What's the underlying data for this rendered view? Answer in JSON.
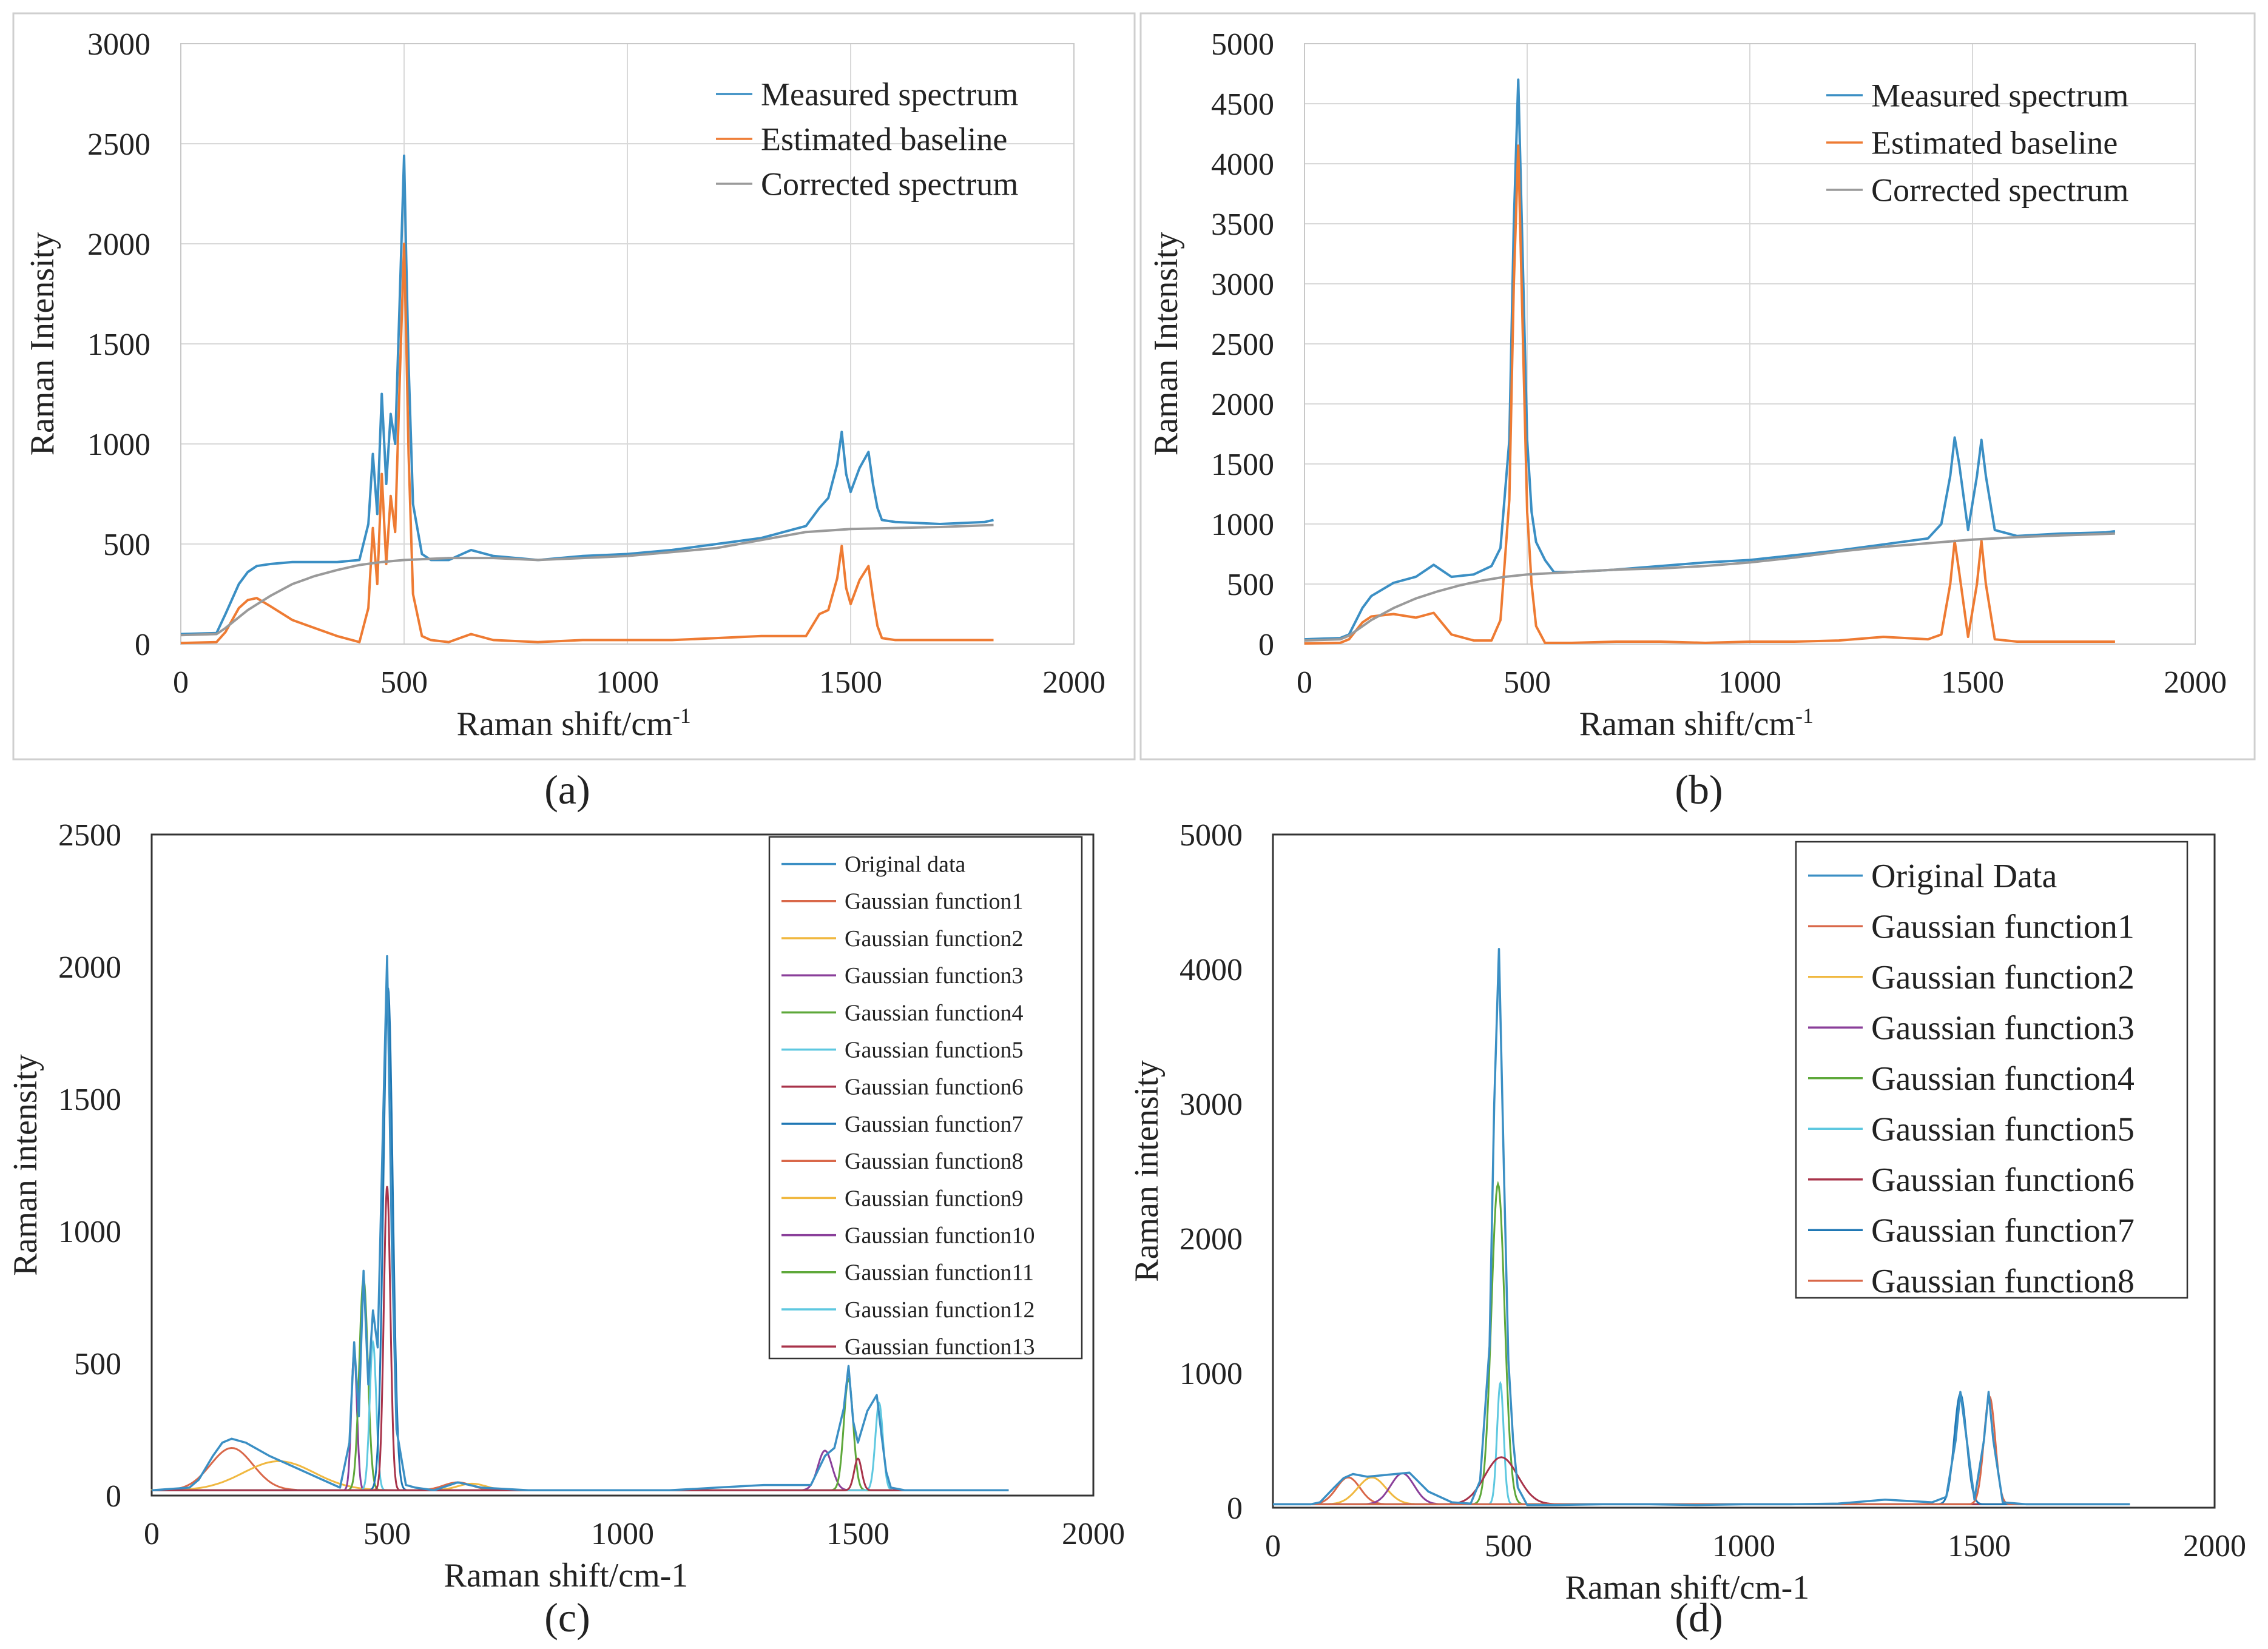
{
  "colors": {
    "measured": "#3b8fc4",
    "baseline": "#ee7b33",
    "corrected": "#9a9a9a",
    "grid": "#d9d9d9",
    "frame": "#c8c8c8",
    "gauss": [
      "#d9684a",
      "#f0b840",
      "#8a3f9a",
      "#5ea83a",
      "#5ec8e0",
      "#a8334a",
      "#1f77b4",
      "#d9684a",
      "#f0b840",
      "#8a3f9a",
      "#5ea83a",
      "#5ec8e0",
      "#a8334a"
    ]
  },
  "panels": {
    "a": {
      "caption": "(a)"
    },
    "b": {
      "caption": "(b)"
    },
    "c": {
      "caption": "(c)"
    },
    "d": {
      "caption": "(d)"
    }
  },
  "chart_data": [
    {
      "id": "a",
      "type": "line",
      "xlabel": "Raman shift/cm",
      "xlabel_sup": "-1",
      "ylabel": "Raman Intensity",
      "xlim": [
        0,
        2000
      ],
      "ylim": [
        0,
        3000
      ],
      "xticks": [
        "0",
        "500",
        "1000",
        "1500",
        "2000"
      ],
      "yticks": [
        "0",
        "500",
        "1000",
        "1500",
        "2000",
        "2500",
        "3000"
      ],
      "grid": true,
      "legend_position": "top-right",
      "legend": [
        "Measured spectrum",
        "Estimated baseline",
        "Corrected spectrum"
      ],
      "series": [
        {
          "name": "Measured spectrum",
          "x": [
            0,
            80,
            100,
            130,
            150,
            170,
            200,
            250,
            300,
            350,
            400,
            420,
            430,
            440,
            450,
            460,
            470,
            480,
            490,
            500,
            505,
            510,
            520,
            540,
            560,
            600,
            650,
            700,
            800,
            900,
            1000,
            1100,
            1200,
            1300,
            1350,
            1400,
            1430,
            1450,
            1470,
            1480,
            1490,
            1500,
            1520,
            1540,
            1550,
            1560,
            1570,
            1600,
            1700,
            1800,
            1820
          ],
          "y": [
            50,
            55,
            150,
            300,
            360,
            390,
            400,
            410,
            410,
            410,
            420,
            600,
            950,
            650,
            1250,
            800,
            1150,
            1000,
            1700,
            2440,
            1900,
            1400,
            700,
            450,
            420,
            420,
            470,
            440,
            420,
            440,
            450,
            470,
            500,
            530,
            560,
            590,
            680,
            730,
            900,
            1060,
            850,
            760,
            880,
            960,
            800,
            680,
            620,
            610,
            600,
            610,
            620
          ]
        },
        {
          "name": "Estimated baseline",
          "x": [
            0,
            80,
            100,
            130,
            150,
            170,
            200,
            250,
            300,
            350,
            400,
            420,
            430,
            440,
            450,
            460,
            470,
            480,
            490,
            500,
            505,
            510,
            520,
            540,
            560,
            600,
            650,
            700,
            800,
            900,
            1000,
            1100,
            1200,
            1300,
            1350,
            1400,
            1430,
            1450,
            1470,
            1480,
            1490,
            1500,
            1520,
            1540,
            1550,
            1560,
            1570,
            1600,
            1700,
            1800,
            1820
          ],
          "y": [
            5,
            10,
            60,
            180,
            220,
            230,
            190,
            120,
            80,
            40,
            10,
            180,
            580,
            300,
            850,
            400,
            740,
            560,
            1300,
            2000,
            1500,
            950,
            250,
            40,
            20,
            10,
            50,
            20,
            10,
            20,
            20,
            20,
            30,
            40,
            40,
            40,
            150,
            170,
            330,
            490,
            280,
            200,
            320,
            390,
            230,
            90,
            30,
            20,
            20,
            20,
            20
          ]
        },
        {
          "name": "Corrected spectrum",
          "x": [
            0,
            80,
            100,
            150,
            200,
            250,
            300,
            350,
            400,
            450,
            500,
            600,
            700,
            800,
            900,
            1000,
            1100,
            1200,
            1300,
            1400,
            1500,
            1600,
            1700,
            1820
          ],
          "y": [
            45,
            50,
            80,
            170,
            240,
            300,
            340,
            370,
            395,
            410,
            420,
            430,
            430,
            420,
            430,
            440,
            460,
            480,
            520,
            560,
            575,
            580,
            585,
            595
          ]
        }
      ]
    },
    {
      "id": "b",
      "type": "line",
      "xlabel": "Raman shift/cm",
      "xlabel_sup": "-1",
      "ylabel": "Raman Intensity",
      "xlim": [
        0,
        2000
      ],
      "ylim": [
        0,
        5000
      ],
      "xticks": [
        "0",
        "500",
        "1000",
        "1500",
        "2000"
      ],
      "yticks": [
        "0",
        "500",
        "1000",
        "1500",
        "2000",
        "2500",
        "3000",
        "3500",
        "4000",
        "4500",
        "5000"
      ],
      "grid": true,
      "legend_position": "top-right",
      "legend": [
        "Measured spectrum",
        "Estimated baseline",
        "Corrected spectrum"
      ],
      "series": [
        {
          "name": "Measured spectrum",
          "x": [
            0,
            80,
            100,
            130,
            150,
            200,
            250,
            290,
            330,
            380,
            420,
            440,
            460,
            470,
            480,
            490,
            500,
            510,
            520,
            540,
            560,
            600,
            700,
            800,
            900,
            1000,
            1100,
            1200,
            1300,
            1400,
            1430,
            1450,
            1460,
            1470,
            1490,
            1510,
            1520,
            1530,
            1550,
            1600,
            1700,
            1800,
            1820
          ],
          "y": [
            40,
            50,
            80,
            300,
            400,
            510,
            560,
            660,
            560,
            580,
            650,
            800,
            1700,
            3500,
            4700,
            3200,
            1700,
            1100,
            850,
            700,
            600,
            600,
            620,
            650,
            680,
            700,
            740,
            780,
            830,
            880,
            1000,
            1400,
            1720,
            1500,
            950,
            1400,
            1700,
            1400,
            950,
            900,
            920,
            930,
            940
          ]
        },
        {
          "name": "Estimated baseline",
          "x": [
            0,
            80,
            100,
            130,
            150,
            200,
            250,
            290,
            330,
            380,
            420,
            440,
            460,
            470,
            480,
            490,
            500,
            510,
            520,
            540,
            560,
            600,
            700,
            800,
            900,
            1000,
            1100,
            1200,
            1300,
            1400,
            1430,
            1450,
            1460,
            1470,
            1490,
            1510,
            1520,
            1530,
            1550,
            1600,
            1700,
            1800,
            1820
          ],
          "y": [
            5,
            10,
            40,
            180,
            230,
            250,
            220,
            260,
            80,
            30,
            30,
            200,
            1200,
            3000,
            4150,
            2600,
            1100,
            500,
            150,
            10,
            10,
            10,
            20,
            20,
            10,
            20,
            20,
            30,
            60,
            40,
            80,
            500,
            860,
            600,
            60,
            500,
            860,
            500,
            40,
            20,
            20,
            20,
            20
          ]
        },
        {
          "name": "Corrected spectrum",
          "x": [
            0,
            80,
            100,
            150,
            200,
            250,
            300,
            350,
            400,
            450,
            500,
            600,
            700,
            800,
            900,
            1000,
            1100,
            1200,
            1300,
            1400,
            1500,
            1600,
            1700,
            1820
          ],
          "y": [
            30,
            40,
            70,
            200,
            300,
            380,
            440,
            490,
            530,
            560,
            580,
            600,
            620,
            630,
            650,
            680,
            720,
            770,
            810,
            840,
            870,
            890,
            905,
            920
          ]
        }
      ]
    },
    {
      "id": "c",
      "type": "line",
      "xlabel": "Raman shift/cm-1",
      "ylabel": "Raman intensity",
      "xlim": [
        0,
        2000
      ],
      "ylim": [
        0,
        2500
      ],
      "xticks": [
        "0",
        "500",
        "1000",
        "1500",
        "2000"
      ],
      "yticks": [
        "0",
        "500",
        "1000",
        "1500",
        "2000",
        "2500"
      ],
      "grid": false,
      "legend_position": "top-right",
      "legend": [
        "Original data",
        "Gaussian function1",
        "Gaussian function2",
        "Gaussian function3",
        "Gaussian function4",
        "Gaussian function5",
        "Gaussian function6",
        "Gaussian function7",
        "Gaussian function8",
        "Gaussian function9",
        "Gaussian function10",
        "Gaussian function11",
        "Gaussian function12",
        "Gaussian function13"
      ],
      "base": 20,
      "original": {
        "name": "Original data",
        "x": [
          0,
          80,
          100,
          130,
          150,
          170,
          200,
          250,
          300,
          350,
          400,
          420,
          430,
          440,
          450,
          460,
          470,
          480,
          490,
          500,
          505,
          510,
          520,
          540,
          560,
          600,
          650,
          700,
          800,
          900,
          1000,
          1100,
          1200,
          1300,
          1400,
          1430,
          1450,
          1470,
          1480,
          1490,
          1500,
          1520,
          1540,
          1550,
          1560,
          1570,
          1600,
          1700,
          1820
        ],
        "y": [
          20,
          30,
          60,
          150,
          200,
          215,
          200,
          150,
          110,
          70,
          30,
          200,
          580,
          300,
          850,
          420,
          700,
          560,
          1300,
          2040,
          1500,
          950,
          250,
          40,
          30,
          20,
          50,
          30,
          20,
          20,
          20,
          20,
          30,
          40,
          40,
          150,
          180,
          330,
          490,
          280,
          200,
          320,
          380,
          230,
          90,
          30,
          20,
          20,
          20
        ]
      },
      "gaussians": [
        {
          "name": "Gaussian function1",
          "amp": 160,
          "center": 170,
          "width": 45
        },
        {
          "name": "Gaussian function2",
          "amp": 110,
          "center": 270,
          "width": 75
        },
        {
          "name": "Gaussian function3",
          "amp": 520,
          "center": 430,
          "width": 6
        },
        {
          "name": "Gaussian function4",
          "amp": 800,
          "center": 450,
          "width": 9
        },
        {
          "name": "Gaussian function5",
          "amp": 560,
          "center": 470,
          "width": 7
        },
        {
          "name": "Gaussian function6",
          "amp": 1150,
          "center": 500,
          "width": 7
        },
        {
          "name": "Gaussian function7",
          "amp": 1900,
          "center": 502,
          "width": 10
        },
        {
          "name": "Gaussian function8",
          "amp": 30,
          "center": 650,
          "width": 30
        },
        {
          "name": "Gaussian function9",
          "amp": 25,
          "center": 680,
          "width": 30
        },
        {
          "name": "Gaussian function10",
          "amp": 150,
          "center": 1430,
          "width": 15
        },
        {
          "name": "Gaussian function11",
          "amp": 420,
          "center": 1480,
          "width": 10
        },
        {
          "name": "Gaussian function12",
          "amp": 330,
          "center": 1545,
          "width": 8
        },
        {
          "name": "Gaussian function13",
          "amp": 120,
          "center": 1500,
          "width": 8
        }
      ]
    },
    {
      "id": "d",
      "type": "line",
      "xlabel": "Raman shift/cm-1",
      "ylabel": "Raman intensity",
      "xlim": [
        0,
        2000
      ],
      "ylim": [
        0,
        5000
      ],
      "xticks": [
        "0",
        "500",
        "1000",
        "1500",
        "2000"
      ],
      "yticks": [
        "0",
        "1000",
        "2000",
        "3000",
        "4000",
        "5000"
      ],
      "grid": false,
      "legend_position": "top-right",
      "legend": [
        "Original Data",
        "Gaussian function1",
        "Gaussian function2",
        "Gaussian function3",
        "Gaussian function4",
        "Gaussian function5",
        "Gaussian function6",
        "Gaussian function7",
        "Gaussian function8"
      ],
      "base": 25,
      "original": {
        "name": "Original Data",
        "x": [
          0,
          80,
          100,
          130,
          150,
          170,
          200,
          230,
          260,
          290,
          330,
          380,
          420,
          440,
          460,
          470,
          480,
          490,
          500,
          510,
          520,
          540,
          560,
          600,
          700,
          800,
          900,
          1000,
          1100,
          1200,
          1300,
          1400,
          1430,
          1450,
          1460,
          1470,
          1490,
          1510,
          1520,
          1530,
          1550,
          1600,
          1700,
          1820
        ],
        "y": [
          25,
          25,
          40,
          150,
          220,
          250,
          230,
          240,
          250,
          260,
          120,
          40,
          30,
          200,
          1200,
          3000,
          4150,
          2600,
          1100,
          500,
          150,
          20,
          20,
          20,
          25,
          25,
          20,
          25,
          25,
          30,
          60,
          40,
          80,
          500,
          860,
          600,
          60,
          500,
          860,
          500,
          40,
          25,
          25,
          25
        ]
      },
      "gaussians": [
        {
          "name": "Gaussian function1",
          "amp": 200,
          "center": 160,
          "width": 25
        },
        {
          "name": "Gaussian function2",
          "amp": 200,
          "center": 210,
          "width": 30
        },
        {
          "name": "Gaussian function3",
          "amp": 230,
          "center": 275,
          "width": 25
        },
        {
          "name": "Gaussian function4",
          "amp": 2380,
          "center": 478,
          "width": 14
        },
        {
          "name": "Gaussian function5",
          "amp": 900,
          "center": 483,
          "width": 7
        },
        {
          "name": "Gaussian function6",
          "amp": 350,
          "center": 485,
          "width": 35
        },
        {
          "name": "Gaussian function7",
          "amp": 820,
          "center": 1460,
          "width": 13
        },
        {
          "name": "Gaussian function8",
          "amp": 800,
          "center": 1522,
          "width": 12
        }
      ]
    }
  ]
}
